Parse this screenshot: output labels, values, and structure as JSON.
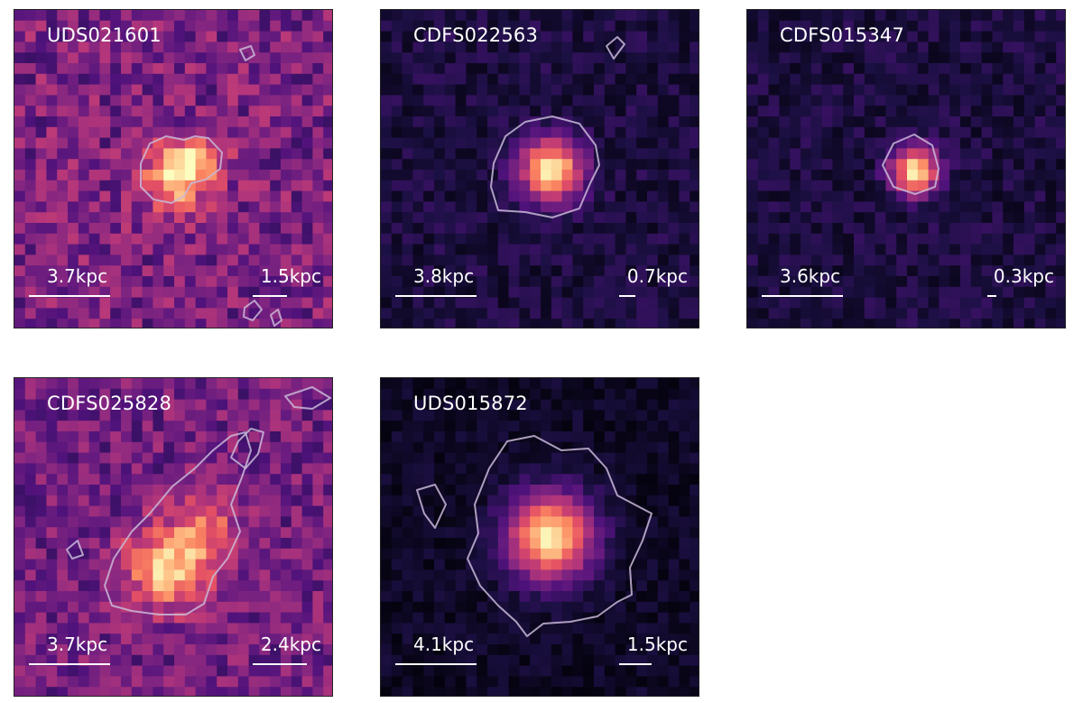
{
  "panels": [
    {
      "id": "UDS021601",
      "scale_left": "3.7kpc",
      "scale_right": "1.5kpc"
    },
    {
      "id": "CDFS022563",
      "scale_left": "3.8kpc",
      "scale_right": "0.7kpc"
    },
    {
      "id": "CDFS015347",
      "scale_left": "3.6kpc",
      "scale_right": "0.3kpc"
    },
    {
      "id": "CDFS025828",
      "scale_left": "3.7kpc",
      "scale_right": "2.4kpc"
    },
    {
      "id": "UDS015872",
      "scale_left": "4.1kpc",
      "scale_right": "1.5kpc"
    }
  ],
  "colors": {
    "colormap": "magma",
    "contour": "#c9b8d8",
    "text": "#ffffff"
  }
}
